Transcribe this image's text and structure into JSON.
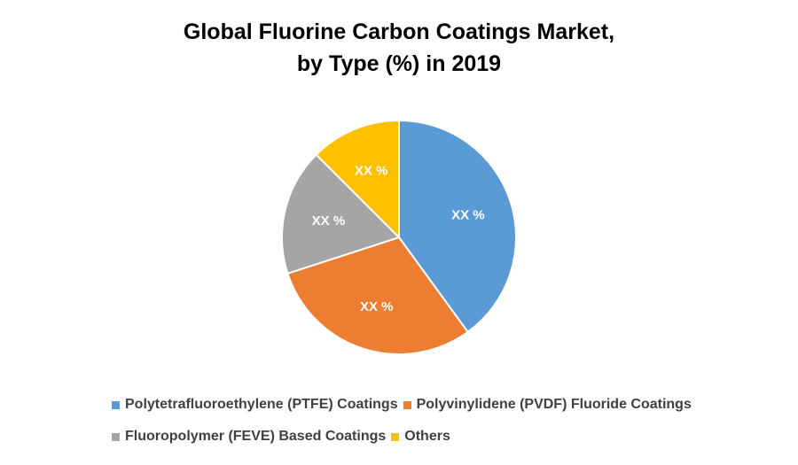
{
  "chart_data": {
    "type": "pie",
    "title_lines": [
      "Global Fluorine Carbon Coatings Market,",
      "by Type (%) in 2019"
    ],
    "slices": [
      {
        "name": "Polytetrafluoroethylene (PTFE) Coatings",
        "value": 40,
        "label": "XX %",
        "color": "#5B9BD5"
      },
      {
        "name": "Polyvinylidene (PVDF) Fluoride Coatings",
        "value": 30,
        "label": "XX %",
        "color": "#ED7D31"
      },
      {
        "name": "Fluoropolymer (FEVE) Based Coatings",
        "value": 17.5,
        "label": "XX %",
        "color": "#A5A5A5"
      },
      {
        "name": "Others",
        "value": 12.5,
        "label": "XX %",
        "color": "#FFC000"
      }
    ],
    "legend_position": "bottom"
  }
}
